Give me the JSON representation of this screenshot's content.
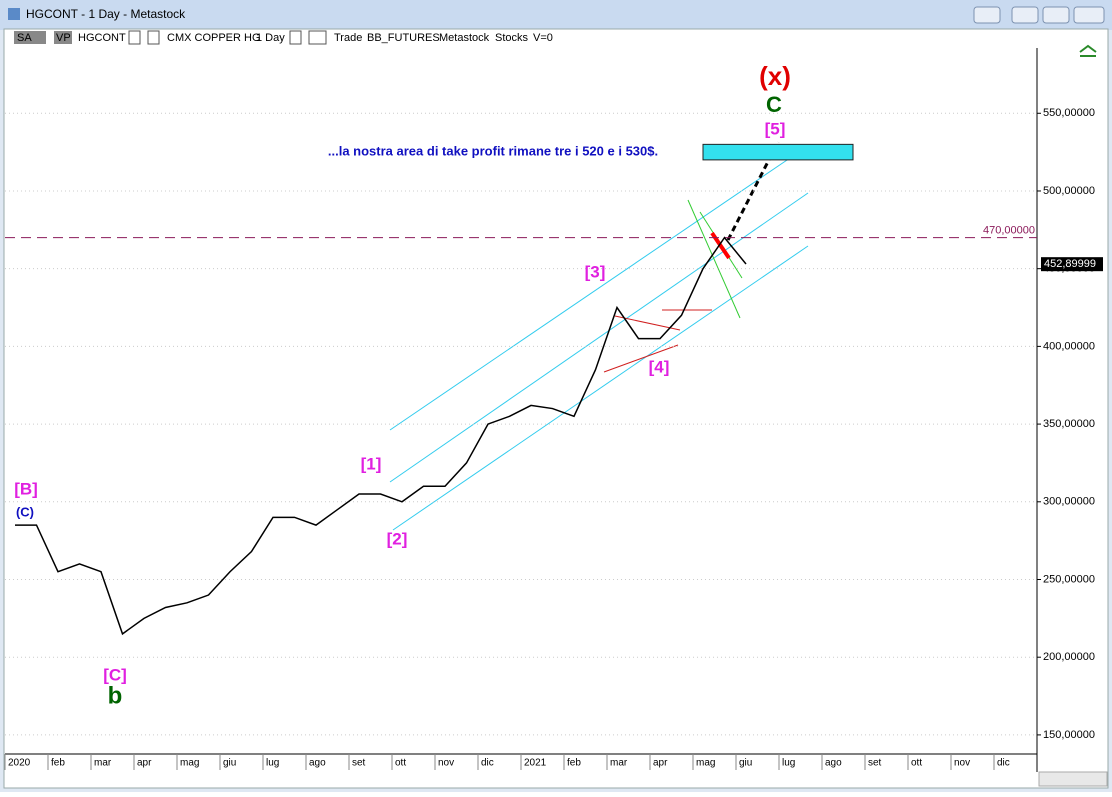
{
  "window": {
    "title": "HGCONT - 1 Day - Metastock",
    "toolbar": [
      "SA",
      "VP",
      "HGCONT",
      "CMX COPPER HG",
      "1 Day",
      "Trade",
      "BB_FUTURES",
      "Metastock",
      "Stocks",
      "V=0"
    ]
  },
  "chart_data": {
    "type": "line",
    "categories": [
      "2020",
      null,
      "feb",
      null,
      "mar",
      null,
      "apr",
      null,
      "mag",
      null,
      "giu",
      null,
      "lug",
      null,
      "ago",
      null,
      "set",
      null,
      "ott",
      null,
      "nov",
      null,
      "dic",
      null,
      "2021",
      null,
      "feb",
      null,
      "mar",
      null,
      "apr",
      null,
      "mag",
      null,
      "giu",
      null,
      "lug",
      null,
      "ago",
      null,
      "set",
      null,
      "ott",
      null,
      "nov",
      null,
      "dic",
      null
    ],
    "series": [
      {
        "name": "HGCONT",
        "color": "#000000",
        "values": [
          285,
          285,
          255,
          260,
          255,
          215,
          225,
          232,
          235,
          240,
          255,
          268,
          290,
          290,
          285,
          295,
          305,
          305,
          300,
          310,
          310,
          325,
          350,
          355,
          362,
          360,
          355,
          385,
          425,
          405,
          405,
          420,
          450,
          470,
          453,
          null,
          null,
          null,
          null,
          null,
          null,
          null,
          null,
          null,
          null,
          null,
          null,
          null
        ]
      }
    ],
    "ylim": [
      139,
      592
    ],
    "yticks": [
      {
        "value": 150,
        "label": "150,00000"
      },
      {
        "value": 200,
        "label": "200,00000"
      },
      {
        "value": 250,
        "label": "250,00000"
      },
      {
        "value": 300,
        "label": "300,00000"
      },
      {
        "value": 350,
        "label": "350,00000"
      },
      {
        "value": 400,
        "label": "400,00000"
      },
      {
        "value": 450,
        "label": "450,00000"
      },
      {
        "value": 500,
        "label": "500,00000"
      },
      {
        "value": 550,
        "label": "550,00000"
      }
    ],
    "grid": true,
    "hline": {
      "value": 470,
      "label": "470,00000",
      "color": "#8b1a5a"
    },
    "last_price": {
      "value": 452.89999,
      "label": "452,89999"
    },
    "target_zone": [
      520,
      530
    ],
    "annotations": [
      {
        "text": "(x)",
        "color": "#e00000"
      },
      {
        "text": "C",
        "color": "#006400"
      },
      {
        "text": "[5]",
        "color": "#e020e0"
      },
      {
        "text": "...la nostra area di take profit rimane tre i 520 e i 530$.",
        "color": "#1010c0"
      },
      {
        "text": "[3]",
        "color": "#e020e0"
      },
      {
        "text": "[4]",
        "color": "#e020e0"
      },
      {
        "text": "[1]",
        "color": "#e020e0"
      },
      {
        "text": "[2]",
        "color": "#e020e0"
      },
      {
        "text": "[B]",
        "color": "#e020e0"
      },
      {
        "text": "(C)",
        "color": "#1010c0"
      },
      {
        "text": "[C]",
        "color": "#e020e0"
      },
      {
        "text": "b",
        "color": "#006400"
      }
    ]
  }
}
